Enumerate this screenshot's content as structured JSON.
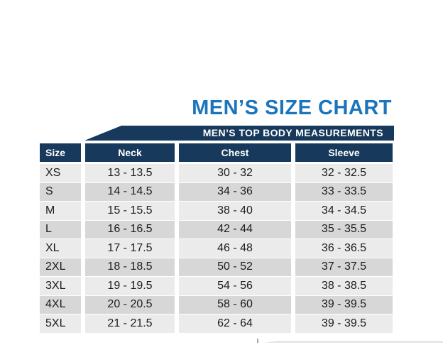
{
  "title": "MEN’S SIZE CHART",
  "banner": "MEN’S TOP BODY MEASUREMENTS",
  "colors": {
    "title_blue": "#1B75BC",
    "navy": "#17395C",
    "row_light": "#EBEBEB",
    "row_dark": "#D7D7D7"
  },
  "chart_data": {
    "type": "table",
    "title": "MEN’S SIZE CHART",
    "subtitle": "MEN’S TOP BODY MEASUREMENTS",
    "columns": [
      "Size",
      "Neck",
      "Chest",
      "Sleeve"
    ],
    "rows": [
      {
        "size": "XS",
        "neck": "13 - 13.5",
        "chest": "30 - 32",
        "sleeve": "32 - 32.5"
      },
      {
        "size": "S",
        "neck": "14 - 14.5",
        "chest": "34 - 36",
        "sleeve": "33 - 33.5"
      },
      {
        "size": "M",
        "neck": "15 - 15.5",
        "chest": "38 - 40",
        "sleeve": "34 - 34.5"
      },
      {
        "size": "L",
        "neck": "16 - 16.5",
        "chest": "42 - 44",
        "sleeve": "35 - 35.5"
      },
      {
        "size": "XL",
        "neck": "17 - 17.5",
        "chest": "46 - 48",
        "sleeve": "36 - 36.5"
      },
      {
        "size": "2XL",
        "neck": "18 - 18.5",
        "chest": "50 - 52",
        "sleeve": "37 - 37.5"
      },
      {
        "size": "3XL",
        "neck": "19 - 19.5",
        "chest": "54 - 56",
        "sleeve": "38 - 38.5"
      },
      {
        "size": "4XL",
        "neck": "20 - 20.5",
        "chest": "58 - 60",
        "sleeve": "39 - 39.5"
      },
      {
        "size": "5XL",
        "neck": "21 - 21.5",
        "chest": "62 - 64",
        "sleeve": "39 - 39.5"
      }
    ]
  }
}
